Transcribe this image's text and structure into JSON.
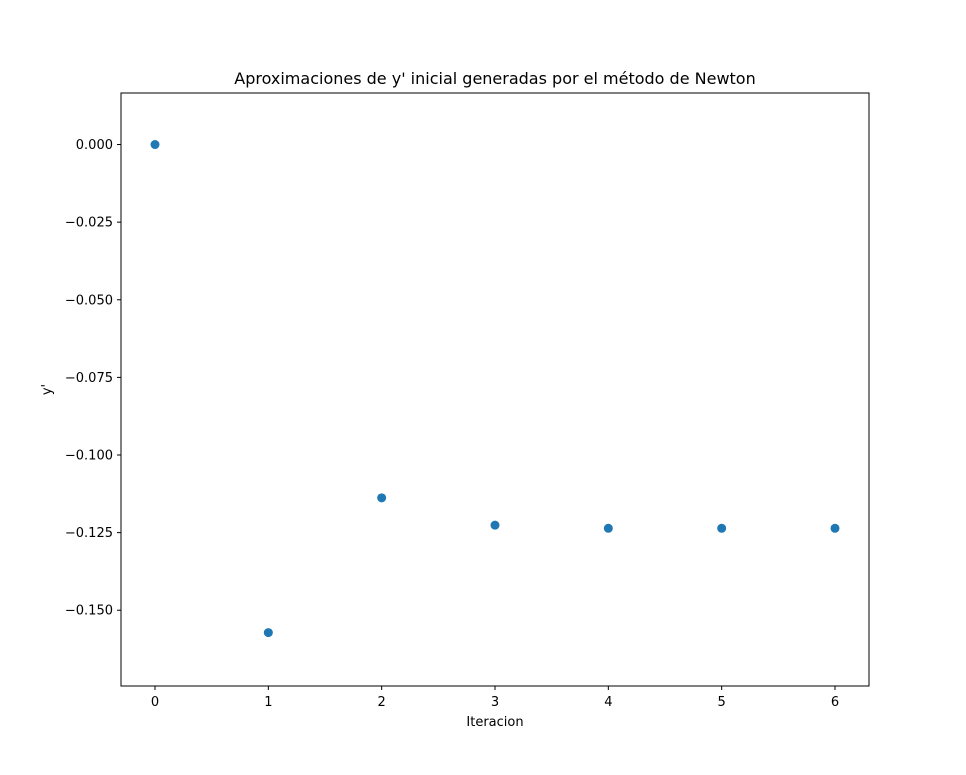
{
  "chart_data": {
    "type": "scatter",
    "title": "Aproximaciones de y' inicial generadas por el método de Newton",
    "xlabel": "Iteracion",
    "ylabel": "y'",
    "x": [
      0,
      1,
      2,
      3,
      4,
      5,
      6
    ],
    "y": [
      0.0,
      -0.1572,
      -0.1138,
      -0.1226,
      -0.1236,
      -0.1236,
      -0.1236
    ],
    "xlim": [
      -0.3,
      6.3
    ],
    "ylim": [
      -0.1744,
      0.0166
    ],
    "xticks": [
      0,
      1,
      2,
      3,
      4,
      5,
      6
    ],
    "xtick_labels": [
      "0",
      "1",
      "2",
      "3",
      "4",
      "5",
      "6"
    ],
    "yticks": [
      0.0,
      -0.025,
      -0.05,
      -0.075,
      -0.1,
      -0.125,
      -0.15
    ],
    "ytick_labels": [
      "0.000",
      "−0.025",
      "−0.050",
      "−0.075",
      "−0.100",
      "−0.125",
      "−0.150"
    ],
    "grid": false,
    "marker_color": "#1f77b4"
  }
}
